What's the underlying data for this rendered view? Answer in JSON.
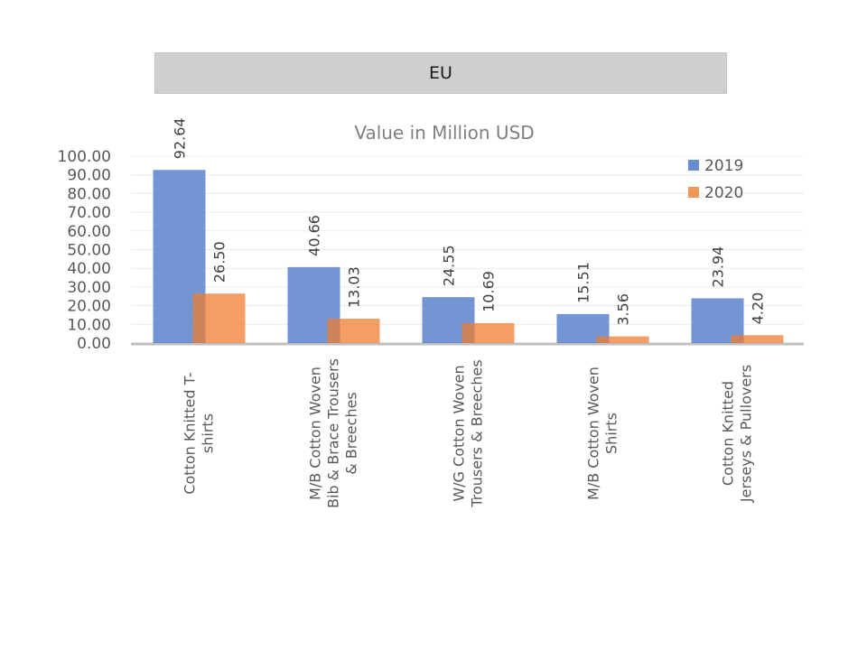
{
  "banner": {
    "label": "EU"
  },
  "chart_data": {
    "type": "bar",
    "title": "Value in Million USD",
    "xlabel": "",
    "ylabel": "",
    "ylim": [
      0,
      100
    ],
    "yticks": [
      "0.00",
      "10.00",
      "20.00",
      "30.00",
      "40.00",
      "50.00",
      "60.00",
      "70.00",
      "80.00",
      "90.00",
      "100.00"
    ],
    "grid": true,
    "legend_position": "top-right",
    "categories": [
      [
        "Cotton Knitted  T-",
        "shirts"
      ],
      [
        "M/B Cotton  Woven",
        "Bib & Brace Trousers",
        "& Breeches"
      ],
      [
        "W/G Cotton Woven",
        "Trousers & Breeches"
      ],
      [
        "M/B Cotton Woven",
        "Shirts"
      ],
      [
        "Cotton  Knitted",
        "Jerseys & Pullovers"
      ]
    ],
    "series": [
      {
        "name": "2019",
        "color": "#4472c4",
        "values": [
          92.64,
          40.66,
          24.55,
          15.51,
          23.94
        ],
        "labels": [
          "92.64",
          "40.66",
          "24.55",
          "15.51",
          "23.94"
        ]
      },
      {
        "name": "2020",
        "color": "#ed7d31",
        "values": [
          26.5,
          13.03,
          10.69,
          3.56,
          4.2
        ],
        "labels": [
          "26.50",
          "13.03",
          "10.69",
          "3.56",
          "4.20"
        ]
      }
    ]
  }
}
